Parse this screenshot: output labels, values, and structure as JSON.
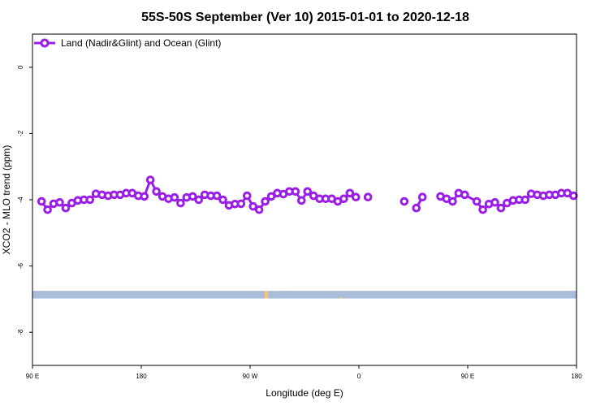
{
  "chart_data": {
    "type": "line",
    "title": "55S-50S September (Ver 10)   2015-01-01 to 2020-12-18",
    "xlabel": "Longitude (deg E)",
    "ylabel": "XCO2 - MLO trend (ppm)",
    "xlim": [
      90,
      540
    ],
    "ylim": [
      -9.0,
      1.0
    ],
    "x_ticks": [
      {
        "value": 90,
        "label": "90 E"
      },
      {
        "value": 180,
        "label": "180"
      },
      {
        "value": 270,
        "label": "90 W"
      },
      {
        "value": 360,
        "label": "0"
      },
      {
        "value": 450,
        "label": "90 E"
      },
      {
        "value": 540,
        "label": "180"
      }
    ],
    "y_ticks": [
      {
        "value": 0,
        "label": "0"
      },
      {
        "value": -2,
        "label": "-2"
      },
      {
        "value": -4,
        "label": "-4"
      },
      {
        "value": -6,
        "label": "-6"
      },
      {
        "value": -8,
        "label": "-8"
      }
    ],
    "legend": {
      "position": "top-left"
    },
    "grid": false,
    "series": [
      {
        "name": "Land (Nadir&Glint) and Ocean (Glint)",
        "color": "#9a1ee6",
        "x": [
          97.5,
          102.5,
          107.5,
          112.5,
          117.5,
          122.5,
          127.5,
          132.5,
          137.5,
          142.5,
          147.5,
          152.5,
          157.5,
          162.5,
          167.5,
          172.5,
          177.5,
          182.5,
          187.5,
          192.5,
          197.5,
          202.5,
          207.5,
          212.5,
          217.5,
          222.5,
          227.5,
          232.5,
          237.5,
          242.5,
          247.5,
          252.5,
          257.5,
          262.5,
          267.5,
          272.5,
          277.5,
          282.5,
          287.5,
          292.5,
          297.5,
          302.5,
          307.5,
          312.5,
          317.5,
          322.5,
          327.5,
          332.5,
          337.5,
          342.5,
          347.5,
          352.5,
          357.5,
          367.5,
          397.5,
          407.5,
          412.5,
          427.5,
          432.5,
          437.5,
          442.5,
          447.5,
          457.5,
          462.5,
          467.5,
          472.5,
          477.5,
          482.5,
          487.5,
          492.5,
          497.5,
          502.5,
          507.5,
          512.5,
          517.5,
          522.5,
          527.5,
          532.5,
          537.5
        ],
        "values": [
          -4.05,
          -4.3,
          -4.12,
          -4.08,
          -4.25,
          -4.1,
          -4.02,
          -4.0,
          -4.0,
          -3.82,
          -3.85,
          -3.88,
          -3.85,
          -3.85,
          -3.8,
          -3.8,
          -3.88,
          -3.9,
          -3.4,
          -3.75,
          -3.9,
          -3.97,
          -3.93,
          -4.1,
          -3.93,
          -3.9,
          -4.0,
          -3.85,
          -3.88,
          -3.88,
          -4.0,
          -4.17,
          -4.13,
          -4.12,
          -3.88,
          -4.2,
          -4.3,
          -4.05,
          -3.9,
          -3.8,
          -3.83,
          -3.75,
          -3.75,
          -4.02,
          -3.75,
          -3.88,
          -3.97,
          -3.97,
          -3.97,
          -4.05,
          -3.97,
          -3.8,
          -3.92,
          -3.92,
          -4.05,
          -4.25,
          -3.92,
          -3.9,
          -3.97,
          -4.05,
          -3.8,
          -3.85,
          -4.05,
          -4.3,
          -4.13,
          -4.08,
          -4.25,
          -4.1,
          -4.02,
          -4.0,
          -4.0,
          -3.82,
          -3.85,
          -3.88,
          -3.85,
          -3.85,
          -3.8,
          -3.8,
          -3.88
        ],
        "segments": [
          [
            0,
            52
          ],
          [
            53,
            53
          ],
          [
            54,
            54
          ],
          [
            55,
            56
          ],
          [
            57,
            78
          ]
        ]
      }
    ],
    "map_strip": {
      "ocean_color": "#a9bcd9",
      "land_color": "#f2c97a",
      "y_range": [
        -6.98,
        -6.75
      ],
      "land": [
        {
          "x": [
            282,
            285
          ],
          "y": [
            -6.98,
            -6.76
          ]
        },
        {
          "x": [
            289.5,
            290.5
          ],
          "y": [
            -6.8,
            -6.78
          ]
        },
        {
          "x": [
            345,
            346
          ],
          "y": [
            -6.98,
            -6.92
          ]
        }
      ]
    }
  }
}
